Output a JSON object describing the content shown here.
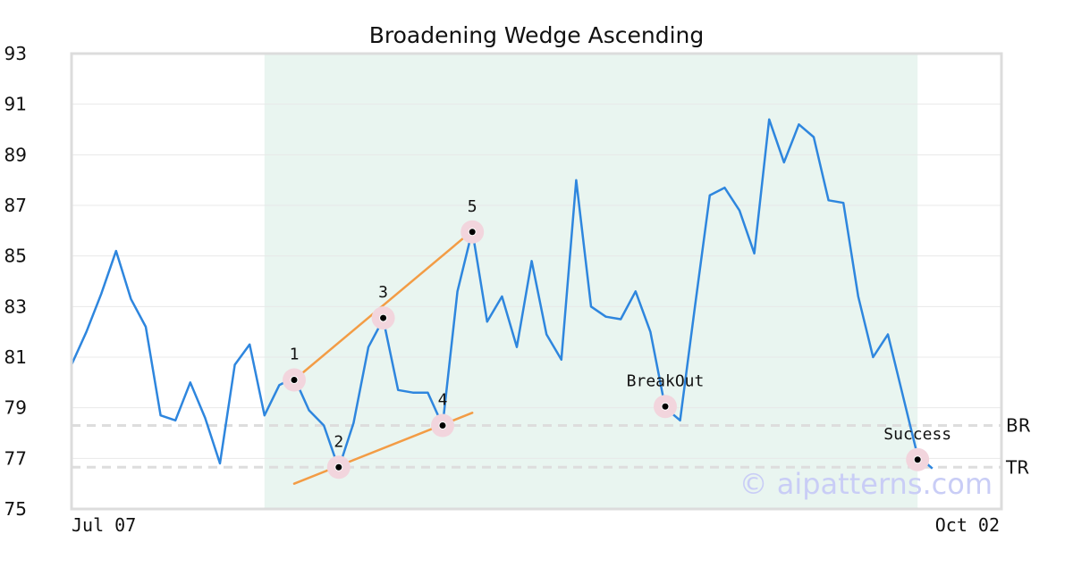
{
  "chart_data": {
    "type": "line",
    "title": "Broadening Wedge Ascending",
    "x_tick_labels": [
      "Jul 07",
      "Oct 02"
    ],
    "y_ticks": [
      75,
      77,
      79,
      81,
      83,
      85,
      87,
      89,
      91,
      93
    ],
    "ylim": [
      75,
      93
    ],
    "grid": "horizontal",
    "values": [
      80.7,
      82.0,
      83.5,
      85.2,
      83.3,
      82.2,
      78.7,
      78.5,
      80.0,
      78.6,
      76.8,
      80.7,
      81.5,
      78.7,
      79.9,
      80.2,
      78.9,
      78.3,
      76.6,
      78.4,
      81.4,
      82.5,
      79.7,
      79.6,
      79.6,
      78.3,
      83.6,
      86.0,
      82.4,
      83.4,
      81.4,
      84.8,
      81.9,
      80.9,
      88.0,
      83.0,
      82.6,
      82.5,
      83.6,
      82.0,
      79.0,
      78.5,
      83.0,
      87.4,
      87.7,
      86.8,
      85.1,
      90.4,
      88.7,
      90.2,
      89.7,
      87.2,
      87.1,
      83.4,
      81.0,
      81.9,
      79.5,
      77.1,
      76.6
    ],
    "highlight_range": [
      13,
      57
    ],
    "reference_lines": [
      {
        "label": "BR",
        "value": 78.3
      },
      {
        "label": "TR",
        "value": 76.65
      }
    ],
    "trend_lines": [
      {
        "from": [
          15,
          80.1
        ],
        "to": [
          27,
          86.0
        ]
      },
      {
        "from": [
          15,
          76.0
        ],
        "to": [
          27,
          78.8
        ]
      }
    ],
    "pivots": [
      {
        "label": "1",
        "index": 15,
        "value": 80.1,
        "label_pos": "above"
      },
      {
        "label": "2",
        "index": 18,
        "value": 76.65,
        "label_pos": "above"
      },
      {
        "label": "3",
        "index": 21,
        "value": 82.55,
        "label_pos": "above"
      },
      {
        "label": "4",
        "index": 25,
        "value": 78.3,
        "label_pos": "above"
      },
      {
        "label": "5",
        "index": 27,
        "value": 85.95,
        "label_pos": "above"
      },
      {
        "label": "BreakOut",
        "index": 40,
        "value": 79.05,
        "label_pos": "above"
      },
      {
        "label": "Success",
        "index": 57,
        "value": 76.95,
        "label_pos": "above"
      }
    ],
    "watermark": "© aipatterns.com",
    "colors": {
      "line": "#2e86de",
      "trend": "#f39c45",
      "highlight": "#e9f5f0",
      "pivot_ring": "#f2d5dd",
      "reference": "#dddddd",
      "grid": "#e8e8e8",
      "frame": "#dcdcdc",
      "watermark": "#c9cdf6"
    }
  }
}
